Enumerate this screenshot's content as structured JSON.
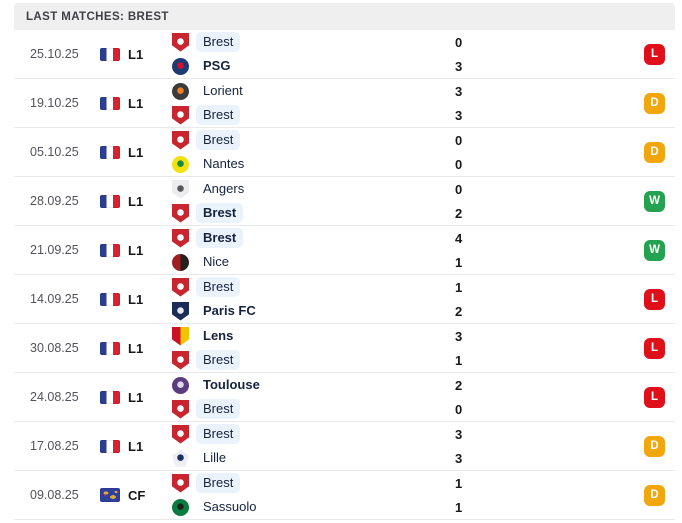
{
  "header": {
    "title": "LAST MATCHES: BREST"
  },
  "colors": {
    "header_bg": "#efefef",
    "header_text": "#3f3f46",
    "row_border": "#e9e9ec",
    "date_text": "#52525b",
    "team_text": "#16233f",
    "brest_highlight": "#eaf2fb",
    "win": "#23a34f",
    "draw": "#f2a60d",
    "loss": "#df1019"
  },
  "matches": [
    {
      "date": "25.10.25",
      "competition": {
        "label": "L1",
        "flag": "france-flag"
      },
      "teams": [
        {
          "name": "Brest",
          "score": "0",
          "bold": false,
          "highlight": true,
          "logo": {
            "name": "brest-logo",
            "shape": "shield",
            "style": "dot",
            "colors": [
              "#c8252f",
              "#ffffff"
            ]
          }
        },
        {
          "name": "PSG",
          "score": "3",
          "bold": true,
          "highlight": false,
          "logo": {
            "name": "psg-logo",
            "shape": "circle",
            "style": "dot",
            "colors": [
              "#1d3c73",
              "#d0122d"
            ]
          }
        }
      ],
      "result": {
        "letter": "L",
        "type": "loss"
      }
    },
    {
      "date": "19.10.25",
      "competition": {
        "label": "L1",
        "flag": "france-flag"
      },
      "teams": [
        {
          "name": "Lorient",
          "score": "3",
          "bold": false,
          "highlight": false,
          "logo": {
            "name": "lorient-logo",
            "shape": "circle",
            "style": "dot",
            "colors": [
              "#3b3b3b",
              "#f08125"
            ]
          }
        },
        {
          "name": "Brest",
          "score": "3",
          "bold": false,
          "highlight": true,
          "logo": {
            "name": "brest-logo",
            "shape": "shield",
            "style": "dot",
            "colors": [
              "#c8252f",
              "#ffffff"
            ]
          }
        }
      ],
      "result": {
        "letter": "D",
        "type": "draw"
      }
    },
    {
      "date": "05.10.25",
      "competition": {
        "label": "L1",
        "flag": "france-flag"
      },
      "teams": [
        {
          "name": "Brest",
          "score": "0",
          "bold": false,
          "highlight": true,
          "logo": {
            "name": "brest-logo",
            "shape": "shield",
            "style": "dot",
            "colors": [
              "#c8252f",
              "#ffffff"
            ]
          }
        },
        {
          "name": "Nantes",
          "score": "0",
          "bold": false,
          "highlight": false,
          "logo": {
            "name": "nantes-logo",
            "shape": "circle",
            "style": "dot",
            "colors": [
              "#f3e10e",
              "#128a46"
            ]
          }
        }
      ],
      "result": {
        "letter": "D",
        "type": "draw"
      }
    },
    {
      "date": "28.09.25",
      "competition": {
        "label": "L1",
        "flag": "france-flag"
      },
      "teams": [
        {
          "name": "Angers",
          "score": "0",
          "bold": false,
          "highlight": false,
          "logo": {
            "name": "angers-logo",
            "shape": "shield",
            "style": "dot",
            "colors": [
              "#ececef",
              "#56565c"
            ]
          }
        },
        {
          "name": "Brest",
          "score": "2",
          "bold": true,
          "highlight": true,
          "logo": {
            "name": "brest-logo",
            "shape": "shield",
            "style": "dot",
            "colors": [
              "#c8252f",
              "#ffffff"
            ]
          }
        }
      ],
      "result": {
        "letter": "W",
        "type": "win"
      }
    },
    {
      "date": "21.09.25",
      "competition": {
        "label": "L1",
        "flag": "france-flag"
      },
      "teams": [
        {
          "name": "Brest",
          "score": "4",
          "bold": true,
          "highlight": true,
          "logo": {
            "name": "brest-logo",
            "shape": "shield",
            "style": "dot",
            "colors": [
              "#c8252f",
              "#ffffff"
            ]
          }
        },
        {
          "name": "Nice",
          "score": "1",
          "bold": false,
          "highlight": false,
          "logo": {
            "name": "nice-logo",
            "shape": "circle",
            "style": "split",
            "colors": [
              "#a01d22",
              "#26211f"
            ]
          }
        }
      ],
      "result": {
        "letter": "W",
        "type": "win"
      }
    },
    {
      "date": "14.09.25",
      "competition": {
        "label": "L1",
        "flag": "france-flag"
      },
      "teams": [
        {
          "name": "Brest",
          "score": "1",
          "bold": false,
          "highlight": true,
          "logo": {
            "name": "brest-logo",
            "shape": "shield",
            "style": "dot",
            "colors": [
              "#c8252f",
              "#ffffff"
            ]
          }
        },
        {
          "name": "Paris FC",
          "score": "2",
          "bold": true,
          "highlight": false,
          "logo": {
            "name": "paris-fc-logo",
            "shape": "shield",
            "style": "dot",
            "colors": [
              "#1b2d56",
              "#e8e8f0"
            ]
          }
        }
      ],
      "result": {
        "letter": "L",
        "type": "loss"
      }
    },
    {
      "date": "30.08.25",
      "competition": {
        "label": "L1",
        "flag": "france-flag"
      },
      "teams": [
        {
          "name": "Lens",
          "score": "3",
          "bold": true,
          "highlight": false,
          "logo": {
            "name": "lens-logo",
            "shape": "shield",
            "style": "split",
            "colors": [
              "#cc1126",
              "#f1c400"
            ]
          }
        },
        {
          "name": "Brest",
          "score": "1",
          "bold": false,
          "highlight": true,
          "logo": {
            "name": "brest-logo",
            "shape": "shield",
            "style": "dot",
            "colors": [
              "#c8252f",
              "#ffffff"
            ]
          }
        }
      ],
      "result": {
        "letter": "L",
        "type": "loss"
      }
    },
    {
      "date": "24.08.25",
      "competition": {
        "label": "L1",
        "flag": "france-flag"
      },
      "teams": [
        {
          "name": "Toulouse",
          "score": "2",
          "bold": true,
          "highlight": false,
          "logo": {
            "name": "toulouse-logo",
            "shape": "circle",
            "style": "dot",
            "colors": [
              "#5b3d7e",
              "#e3d8ec"
            ]
          }
        },
        {
          "name": "Brest",
          "score": "0",
          "bold": false,
          "highlight": true,
          "logo": {
            "name": "brest-logo",
            "shape": "shield",
            "style": "dot",
            "colors": [
              "#c8252f",
              "#ffffff"
            ]
          }
        }
      ],
      "result": {
        "letter": "L",
        "type": "loss"
      }
    },
    {
      "date": "17.08.25",
      "competition": {
        "label": "L1",
        "flag": "france-flag"
      },
      "teams": [
        {
          "name": "Brest",
          "score": "3",
          "bold": false,
          "highlight": true,
          "logo": {
            "name": "brest-logo",
            "shape": "shield",
            "style": "dot",
            "colors": [
              "#c8252f",
              "#ffffff"
            ]
          }
        },
        {
          "name": "Lille",
          "score": "3",
          "bold": false,
          "highlight": false,
          "logo": {
            "name": "lille-logo",
            "shape": "pentagon",
            "style": "dot",
            "colors": [
              "#eceef4",
              "#1c2f5e"
            ]
          }
        }
      ],
      "result": {
        "letter": "D",
        "type": "draw"
      }
    },
    {
      "date": "09.08.25",
      "competition": {
        "label": "CF",
        "flag": "world-flag"
      },
      "teams": [
        {
          "name": "Brest",
          "score": "1",
          "bold": false,
          "highlight": true,
          "logo": {
            "name": "brest-logo",
            "shape": "shield",
            "style": "dot",
            "colors": [
              "#c8252f",
              "#ffffff"
            ]
          }
        },
        {
          "name": "Sassuolo",
          "score": "1",
          "bold": false,
          "highlight": false,
          "logo": {
            "name": "sassuolo-logo",
            "shape": "circle",
            "style": "dot",
            "colors": [
              "#0c7c3f",
              "#17261c"
            ]
          }
        }
      ],
      "result": {
        "letter": "D",
        "type": "draw"
      }
    }
  ]
}
